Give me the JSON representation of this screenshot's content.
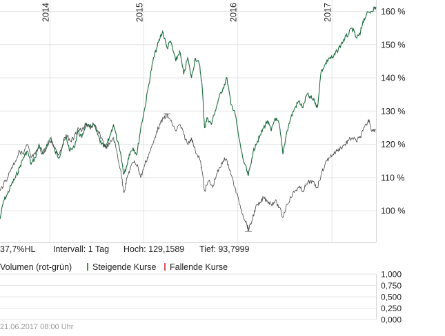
{
  "chart_data": {
    "type": "line",
    "x_labels": [
      "2014",
      "2015",
      "2016",
      "2017"
    ],
    "y_ticks": [
      "100 %",
      "110 %",
      "120 %",
      "130 %",
      "140 %",
      "150 %",
      "160 %"
    ],
    "ylim": [
      90.5,
      163
    ],
    "xlim": [
      "2013-06-21",
      "2017-06-21"
    ],
    "series": [
      {
        "color": "#1a6b3c",
        "points": [
          [
            "2013-06-21",
            97.5
          ],
          [
            "2013-07-05",
            103
          ],
          [
            "2013-07-20",
            105
          ],
          [
            "2013-08-05",
            108
          ],
          [
            "2013-08-20",
            110
          ],
          [
            "2013-09-05",
            113
          ],
          [
            "2013-09-20",
            116
          ],
          [
            "2013-10-05",
            118
          ],
          [
            "2013-10-20",
            114
          ],
          [
            "2013-11-05",
            116
          ],
          [
            "2013-11-20",
            120
          ],
          [
            "2013-12-05",
            117
          ],
          [
            "2013-12-20",
            120
          ],
          [
            "2014-01-05",
            122
          ],
          [
            "2014-01-20",
            118
          ],
          [
            "2014-02-05",
            116
          ],
          [
            "2014-02-20",
            120
          ],
          [
            "2014-03-05",
            122
          ],
          [
            "2014-03-20",
            118
          ],
          [
            "2014-04-05",
            119
          ],
          [
            "2014-04-20",
            124
          ],
          [
            "2014-05-05",
            122
          ],
          [
            "2014-05-20",
            126
          ],
          [
            "2014-06-05",
            125
          ],
          [
            "2014-06-20",
            126
          ],
          [
            "2014-07-05",
            123
          ],
          [
            "2014-07-20",
            120
          ],
          [
            "2014-08-05",
            119
          ],
          [
            "2014-08-20",
            122
          ],
          [
            "2014-09-05",
            126
          ],
          [
            "2014-09-20",
            121
          ],
          [
            "2014-10-05",
            116
          ],
          [
            "2014-10-15",
            111
          ],
          [
            "2014-10-25",
            113
          ],
          [
            "2014-11-05",
            117
          ],
          [
            "2014-11-20",
            119
          ],
          [
            "2014-12-05",
            117
          ],
          [
            "2014-12-20",
            125
          ],
          [
            "2015-01-05",
            131
          ],
          [
            "2015-01-20",
            138
          ],
          [
            "2015-02-05",
            145
          ],
          [
            "2015-02-20",
            149
          ],
          [
            "2015-03-05",
            152
          ],
          [
            "2015-03-15",
            154
          ],
          [
            "2015-04-01",
            149
          ],
          [
            "2015-04-15",
            151
          ],
          [
            "2015-05-05",
            145
          ],
          [
            "2015-05-20",
            148
          ],
          [
            "2015-06-05",
            141
          ],
          [
            "2015-06-20",
            146
          ],
          [
            "2015-07-05",
            140
          ],
          [
            "2015-07-20",
            146
          ],
          [
            "2015-08-05",
            144
          ],
          [
            "2015-08-15",
            138
          ],
          [
            "2015-08-25",
            125
          ],
          [
            "2015-09-05",
            128
          ],
          [
            "2015-09-20",
            126
          ],
          [
            "2015-10-05",
            130
          ],
          [
            "2015-10-20",
            134
          ],
          [
            "2015-11-05",
            137
          ],
          [
            "2015-11-20",
            140
          ],
          [
            "2015-12-05",
            132
          ],
          [
            "2015-12-20",
            130
          ],
          [
            "2016-01-05",
            122
          ],
          [
            "2016-01-20",
            116
          ],
          [
            "2016-02-05",
            112
          ],
          [
            "2016-02-11",
            110.5
          ],
          [
            "2016-02-25",
            116
          ],
          [
            "2016-03-10",
            120
          ],
          [
            "2016-03-25",
            122
          ],
          [
            "2016-04-10",
            125
          ],
          [
            "2016-04-25",
            127
          ],
          [
            "2016-05-10",
            124
          ],
          [
            "2016-05-25",
            128
          ],
          [
            "2016-06-10",
            126
          ],
          [
            "2016-06-24",
            117
          ],
          [
            "2016-07-10",
            124
          ],
          [
            "2016-07-25",
            128
          ],
          [
            "2016-08-10",
            131
          ],
          [
            "2016-08-25",
            133
          ],
          [
            "2016-09-10",
            131
          ],
          [
            "2016-09-25",
            135
          ],
          [
            "2016-10-10",
            134
          ],
          [
            "2016-10-25",
            133
          ],
          [
            "2016-11-05",
            131
          ],
          [
            "2016-11-20",
            142
          ],
          [
            "2016-12-05",
            144
          ],
          [
            "2016-12-20",
            146
          ],
          [
            "2017-01-05",
            146
          ],
          [
            "2017-01-20",
            148
          ],
          [
            "2017-02-05",
            150
          ],
          [
            "2017-02-20",
            152
          ],
          [
            "2017-03-05",
            153
          ],
          [
            "2017-03-20",
            155
          ],
          [
            "2017-04-05",
            152
          ],
          [
            "2017-04-20",
            153
          ],
          [
            "2017-05-01",
            157
          ],
          [
            "2017-05-15",
            159
          ],
          [
            "2017-06-01",
            160
          ],
          [
            "2017-06-15",
            161
          ],
          [
            "2017-06-21",
            161
          ]
        ]
      },
      {
        "color": "#444444",
        "points": [
          [
            "2013-06-21",
            106
          ],
          [
            "2013-07-05",
            108
          ],
          [
            "2013-07-20",
            110
          ],
          [
            "2013-08-05",
            113
          ],
          [
            "2013-08-20",
            115
          ],
          [
            "2013-09-05",
            118
          ],
          [
            "2013-09-20",
            117
          ],
          [
            "2013-10-05",
            120
          ],
          [
            "2013-10-20",
            116
          ],
          [
            "2013-11-05",
            117
          ],
          [
            "2013-11-20",
            119
          ],
          [
            "2013-12-05",
            117
          ],
          [
            "2013-12-20",
            119
          ],
          [
            "2014-01-05",
            121
          ],
          [
            "2014-01-20",
            119
          ],
          [
            "2014-02-05",
            117
          ],
          [
            "2014-02-20",
            120
          ],
          [
            "2014-03-05",
            123
          ],
          [
            "2014-03-20",
            121
          ],
          [
            "2014-04-05",
            122
          ],
          [
            "2014-04-20",
            125
          ],
          [
            "2014-05-05",
            124
          ],
          [
            "2014-05-20",
            126
          ],
          [
            "2014-06-05",
            125
          ],
          [
            "2014-06-20",
            126
          ],
          [
            "2014-07-05",
            124
          ],
          [
            "2014-07-20",
            122
          ],
          [
            "2014-08-05",
            119
          ],
          [
            "2014-08-20",
            120
          ],
          [
            "2014-09-05",
            122
          ],
          [
            "2014-09-20",
            117
          ],
          [
            "2014-10-05",
            111
          ],
          [
            "2014-10-16",
            105.5
          ],
          [
            "2014-10-28",
            110
          ],
          [
            "2014-11-10",
            113
          ],
          [
            "2014-11-25",
            115
          ],
          [
            "2014-12-10",
            113
          ],
          [
            "2014-12-20",
            110
          ],
          [
            "2015-01-05",
            114
          ],
          [
            "2015-01-20",
            117
          ],
          [
            "2015-02-05",
            120
          ],
          [
            "2015-02-20",
            124
          ],
          [
            "2015-03-05",
            126
          ],
          [
            "2015-03-20",
            128
          ],
          [
            "2015-04-01",
            129
          ],
          [
            "2015-04-15",
            127
          ],
          [
            "2015-05-05",
            124
          ],
          [
            "2015-05-20",
            126
          ],
          [
            "2015-06-05",
            123
          ],
          [
            "2015-06-20",
            120
          ],
          [
            "2015-07-05",
            122
          ],
          [
            "2015-07-20",
            118
          ],
          [
            "2015-08-05",
            116
          ],
          [
            "2015-08-15",
            112
          ],
          [
            "2015-08-25",
            106
          ],
          [
            "2015-09-10",
            109
          ],
          [
            "2015-09-25",
            107
          ],
          [
            "2015-10-10",
            111
          ],
          [
            "2015-10-25",
            113
          ],
          [
            "2015-11-10",
            116
          ],
          [
            "2015-11-25",
            114
          ],
          [
            "2015-12-10",
            110
          ],
          [
            "2015-12-20",
            107
          ],
          [
            "2016-01-05",
            103
          ],
          [
            "2016-01-20",
            99
          ],
          [
            "2016-02-05",
            96
          ],
          [
            "2016-02-11",
            94
          ],
          [
            "2016-02-25",
            97
          ],
          [
            "2016-03-10",
            101
          ],
          [
            "2016-03-25",
            102
          ],
          [
            "2016-04-10",
            104
          ],
          [
            "2016-04-25",
            103
          ],
          [
            "2016-05-10",
            102
          ],
          [
            "2016-05-25",
            103
          ],
          [
            "2016-06-10",
            101
          ],
          [
            "2016-06-24",
            98
          ],
          [
            "2016-07-10",
            102
          ],
          [
            "2016-07-25",
            104
          ],
          [
            "2016-08-10",
            106
          ],
          [
            "2016-08-25",
            107
          ],
          [
            "2016-09-10",
            106
          ],
          [
            "2016-09-25",
            108
          ],
          [
            "2016-10-10",
            109
          ],
          [
            "2016-10-25",
            108
          ],
          [
            "2016-11-05",
            107
          ],
          [
            "2016-11-20",
            111
          ],
          [
            "2016-12-05",
            114
          ],
          [
            "2016-12-20",
            116
          ],
          [
            "2017-01-05",
            117
          ],
          [
            "2017-01-20",
            118
          ],
          [
            "2017-02-05",
            119
          ],
          [
            "2017-02-20",
            120
          ],
          [
            "2017-03-05",
            121
          ],
          [
            "2017-03-20",
            122
          ],
          [
            "2017-04-05",
            121
          ],
          [
            "2017-04-20",
            122
          ],
          [
            "2017-05-01",
            124
          ],
          [
            "2017-05-15",
            126
          ],
          [
            "2017-05-25",
            127.5
          ],
          [
            "2017-06-05",
            124
          ],
          [
            "2017-06-21",
            124.5
          ]
        ]
      }
    ],
    "markers": [
      {
        "date": "2015-04-01",
        "value": 129.1589
      },
      {
        "date": "2016-02-11",
        "value": 93.7999
      }
    ],
    "volume_ticks": [
      "1,000",
      "0,750",
      "0,500",
      "0,250",
      "0,000"
    ],
    "volume_ylim": [
      0,
      1
    ],
    "grid": true,
    "legend": "bottom-left"
  },
  "info": {
    "range": "37,7%HL",
    "interval": "Intervall: 1 Tag",
    "high": "Hoch: 129,1589",
    "low": "Tief: 93,7999"
  },
  "volume_legend": {
    "title": "Volumen (rot-grün)",
    "rising": "Steigende Kurse",
    "falling": "Fallende Kurse",
    "rising_color": "#2ca02c",
    "falling_color": "#e0525a"
  },
  "timestamp": "21.06.2017 08:00 Uhr"
}
